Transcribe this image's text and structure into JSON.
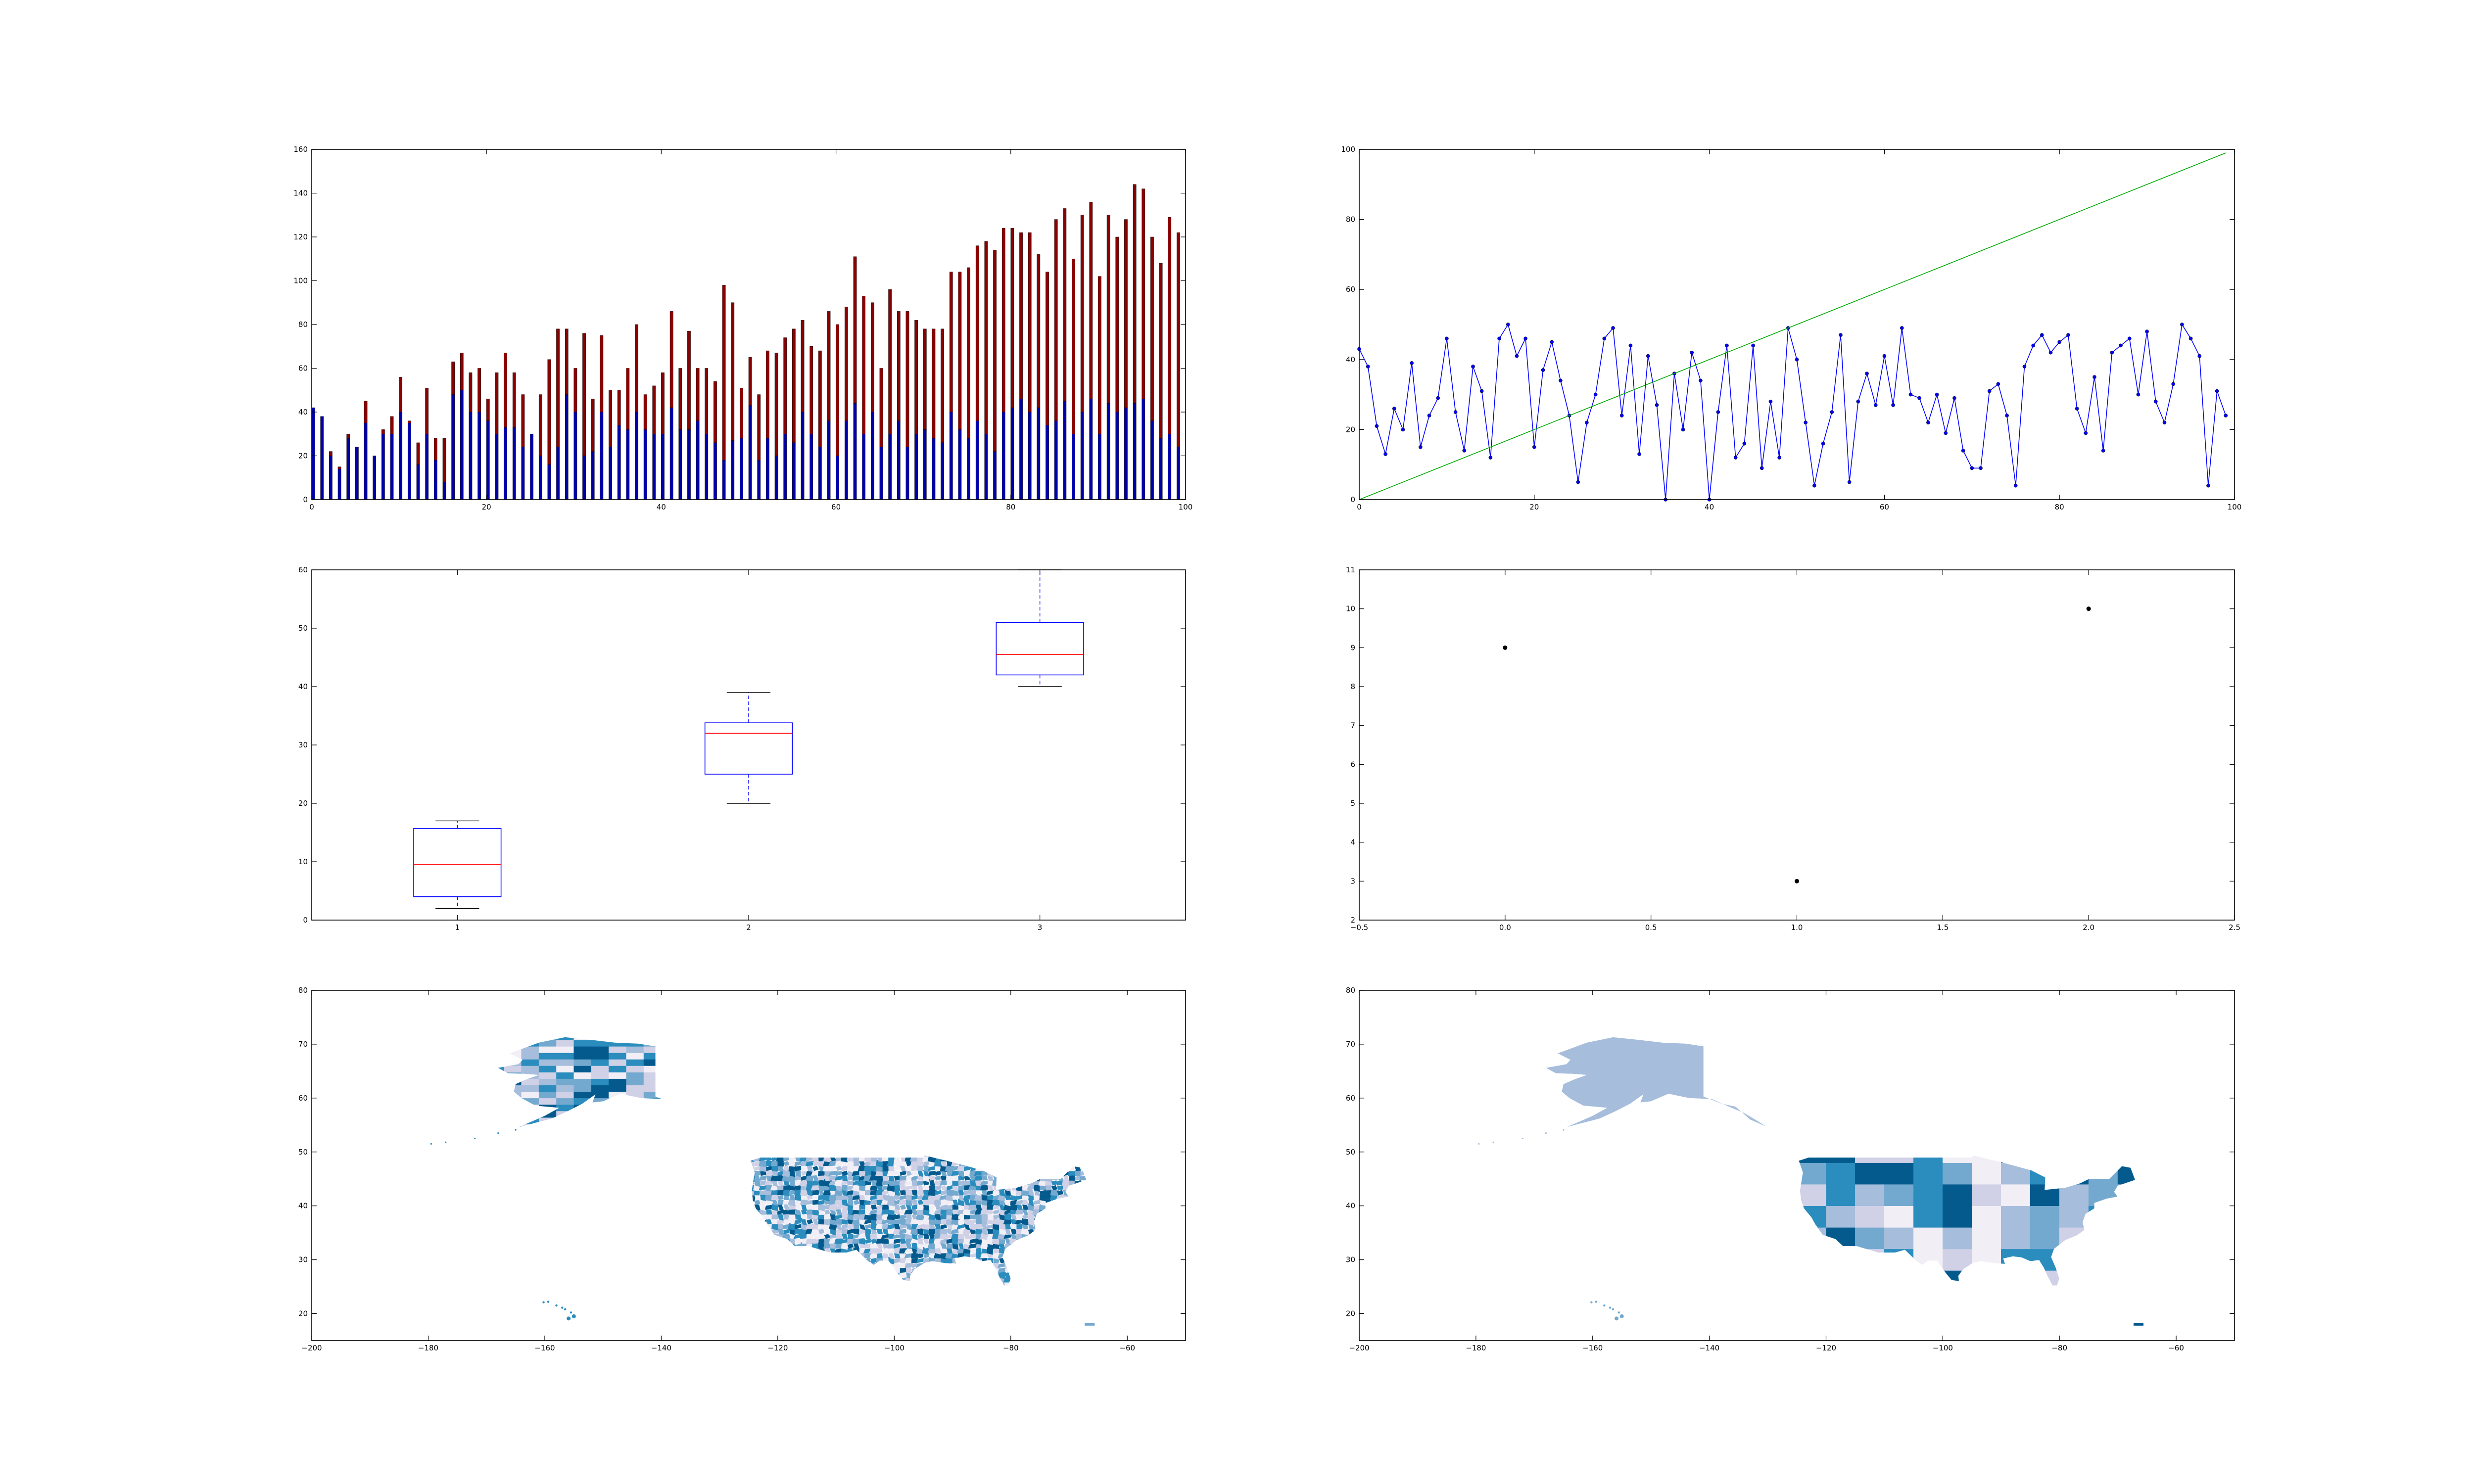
{
  "chart_data": [
    {
      "id": "p1",
      "type": "bar",
      "stacked": true,
      "x": [
        0,
        1,
        2,
        3,
        4,
        5,
        6,
        7,
        8,
        9,
        10,
        11,
        12,
        13,
        14,
        15,
        16,
        17,
        18,
        19,
        20,
        21,
        22,
        23,
        24,
        25,
        26,
        27,
        28,
        29,
        30,
        31,
        32,
        33,
        34,
        35,
        36,
        37,
        38,
        39,
        40,
        41,
        42,
        43,
        44,
        45,
        46,
        47,
        48,
        49,
        50,
        51,
        52,
        53,
        54,
        55,
        56,
        57,
        58,
        59,
        60,
        61,
        62,
        63,
        64,
        65,
        66,
        67,
        68,
        69,
        70,
        71,
        72,
        73,
        74,
        75,
        76,
        77,
        78,
        79,
        80,
        81,
        82,
        83,
        84,
        85,
        86,
        87,
        88,
        89,
        90,
        91,
        92,
        93,
        94,
        95,
        96,
        97,
        98,
        99
      ],
      "series": [
        {
          "color": "#0000ab",
          "values": [
            42,
            38,
            20,
            14,
            28,
            24,
            35,
            20,
            30,
            30,
            40,
            35,
            16,
            30,
            18,
            8,
            48,
            50,
            40,
            40,
            36,
            30,
            33,
            33,
            24,
            30,
            20,
            16,
            24,
            48,
            40,
            20,
            22,
            40,
            24,
            34,
            32,
            40,
            32,
            30,
            30,
            42,
            32,
            32,
            36,
            30,
            26,
            18,
            27,
            28,
            43,
            18,
            28,
            20,
            30,
            26,
            40,
            30,
            24,
            36,
            20,
            36,
            44,
            30,
            40,
            24,
            30,
            36,
            24,
            30,
            32,
            28,
            26,
            40,
            32,
            28,
            36,
            30,
            22,
            40,
            42,
            46,
            40,
            42,
            34,
            36,
            45,
            30,
            40,
            46,
            30,
            44,
            40,
            42,
            44,
            46,
            36,
            28,
            30,
            24
          ]
        },
        {
          "color": "#8b0000",
          "values": [
            0,
            0,
            2,
            1,
            2,
            0,
            10,
            0,
            2,
            8,
            16,
            1,
            10,
            21,
            10,
            20,
            15,
            17,
            18,
            20,
            10,
            28,
            34,
            25,
            24,
            0,
            28,
            48,
            54,
            30,
            20,
            56,
            24,
            35,
            26,
            16,
            28,
            40,
            16,
            22,
            28,
            44,
            28,
            45,
            24,
            30,
            28,
            80,
            63,
            23,
            22,
            30,
            40,
            47,
            44,
            52,
            42,
            40,
            44,
            50,
            60,
            52,
            67,
            63,
            50,
            36,
            66,
            50,
            62,
            52,
            46,
            50,
            52,
            64,
            72,
            78,
            80,
            88,
            92,
            84,
            82,
            76,
            82,
            70,
            70,
            92,
            88,
            80,
            90,
            90,
            72,
            86,
            80,
            86,
            100,
            96,
            84,
            80,
            99,
            98
          ]
        }
      ],
      "xlim": [
        0,
        100
      ],
      "ylim": [
        0,
        160
      ],
      "xticks": [
        0,
        20,
        40,
        60,
        80,
        100
      ],
      "yticks": [
        0,
        20,
        40,
        60,
        80,
        100,
        120,
        140,
        160
      ]
    },
    {
      "id": "p2",
      "type": "line",
      "series": [
        {
          "color": "#0000ff",
          "markers": true,
          "x": [
            0,
            1,
            2,
            3,
            4,
            5,
            6,
            7,
            8,
            9,
            10,
            11,
            12,
            13,
            14,
            15,
            16,
            17,
            18,
            19,
            20,
            21,
            22,
            23,
            24,
            25,
            26,
            27,
            28,
            29,
            30,
            31,
            32,
            33,
            34,
            35,
            36,
            37,
            38,
            39,
            40,
            41,
            42,
            43,
            44,
            45,
            46,
            47,
            48,
            49,
            50,
            51,
            52,
            53,
            54,
            55,
            56,
            57,
            58,
            59,
            60,
            61,
            62,
            63,
            64,
            65,
            66,
            67,
            68,
            69,
            70,
            71,
            72,
            73,
            74,
            75,
            76,
            77,
            78,
            79,
            80,
            81,
            82,
            83,
            84,
            85,
            86,
            87,
            88,
            89,
            90,
            91,
            92,
            93,
            94,
            95,
            96,
            97,
            98,
            99
          ],
          "y": [
            43,
            38,
            21,
            13,
            26,
            20,
            39,
            15,
            24,
            29,
            46,
            25,
            14,
            38,
            31,
            12,
            46,
            50,
            41,
            46,
            15,
            37,
            45,
            34,
            24,
            5,
            22,
            30,
            46,
            49,
            24,
            44,
            13,
            41,
            27,
            0,
            36,
            20,
            42,
            34,
            0,
            25,
            44,
            12,
            16,
            44,
            9,
            28,
            12,
            49,
            40,
            22,
            4,
            16,
            25,
            47,
            5,
            28,
            36,
            27,
            41,
            27,
            49,
            30,
            29,
            22,
            30,
            19,
            29,
            14,
            9,
            9,
            31,
            33,
            24,
            4,
            38,
            44,
            47,
            42,
            45,
            47,
            26,
            19,
            35,
            14,
            42,
            44,
            46,
            30,
            48,
            28,
            22,
            33,
            50,
            46,
            41,
            4,
            31,
            24
          ]
        },
        {
          "color": "#00aa00",
          "markers": false,
          "x": [
            0,
            99
          ],
          "y": [
            0,
            99
          ]
        }
      ],
      "xlim": [
        0,
        100
      ],
      "ylim": [
        0,
        100
      ],
      "xticks": [
        0,
        20,
        40,
        60,
        80,
        100
      ],
      "yticks": [
        0,
        20,
        40,
        60,
        80,
        100
      ]
    },
    {
      "id": "p3",
      "type": "boxplot",
      "boxes": [
        {
          "pos": 1,
          "whislo": 2,
          "q1": 4,
          "med": 9.5,
          "q3": 15.7,
          "whishi": 17
        },
        {
          "pos": 2,
          "whislo": 20,
          "q1": 25,
          "med": 32,
          "q3": 33.8,
          "whishi": 39
        },
        {
          "pos": 3,
          "whislo": 40,
          "q1": 42,
          "med": 45.5,
          "q3": 51,
          "whishi": 60
        }
      ],
      "xlim": [
        0.5,
        3.5
      ],
      "ylim": [
        0,
        60
      ],
      "xticks": [
        1,
        2,
        3
      ],
      "yticks": [
        0,
        10,
        20,
        30,
        40,
        50,
        60
      ]
    },
    {
      "id": "p4",
      "type": "scatter",
      "x": [
        0,
        1,
        2
      ],
      "y": [
        9,
        3,
        10
      ],
      "xlim": [
        -0.5,
        2.5
      ],
      "ylim": [
        2,
        11
      ],
      "xticks": [
        -0.5,
        0.0,
        0.5,
        1.0,
        1.5,
        2.0,
        2.5
      ],
      "yticks": [
        2,
        3,
        4,
        5,
        6,
        7,
        8,
        9,
        10,
        11
      ]
    },
    {
      "id": "p5",
      "type": "map",
      "detail": "county",
      "xlim": [
        -200,
        -50
      ],
      "ylim": [
        15,
        80
      ],
      "xticks": [
        -200,
        -180,
        -160,
        -140,
        -120,
        -100,
        -80,
        -60
      ],
      "yticks": [
        20,
        30,
        40,
        50,
        60,
        70,
        80
      ],
      "palette": [
        "#f1eef6",
        "#d0d1e6",
        "#a6bddb",
        "#74a9cf",
        "#2b8cbe",
        "#045a8d"
      ]
    },
    {
      "id": "p6",
      "type": "map",
      "detail": "state",
      "xlim": [
        -200,
        -50
      ],
      "ylim": [
        15,
        80
      ],
      "xticks": [
        -200,
        -180,
        -160,
        -140,
        -120,
        -100,
        -80,
        -60
      ],
      "yticks": [
        20,
        30,
        40,
        50,
        60,
        70,
        80
      ],
      "palette": [
        "#f1eef6",
        "#d0d1e6",
        "#a6bddb",
        "#74a9cf",
        "#2b8cbe",
        "#045a8d"
      ]
    }
  ]
}
